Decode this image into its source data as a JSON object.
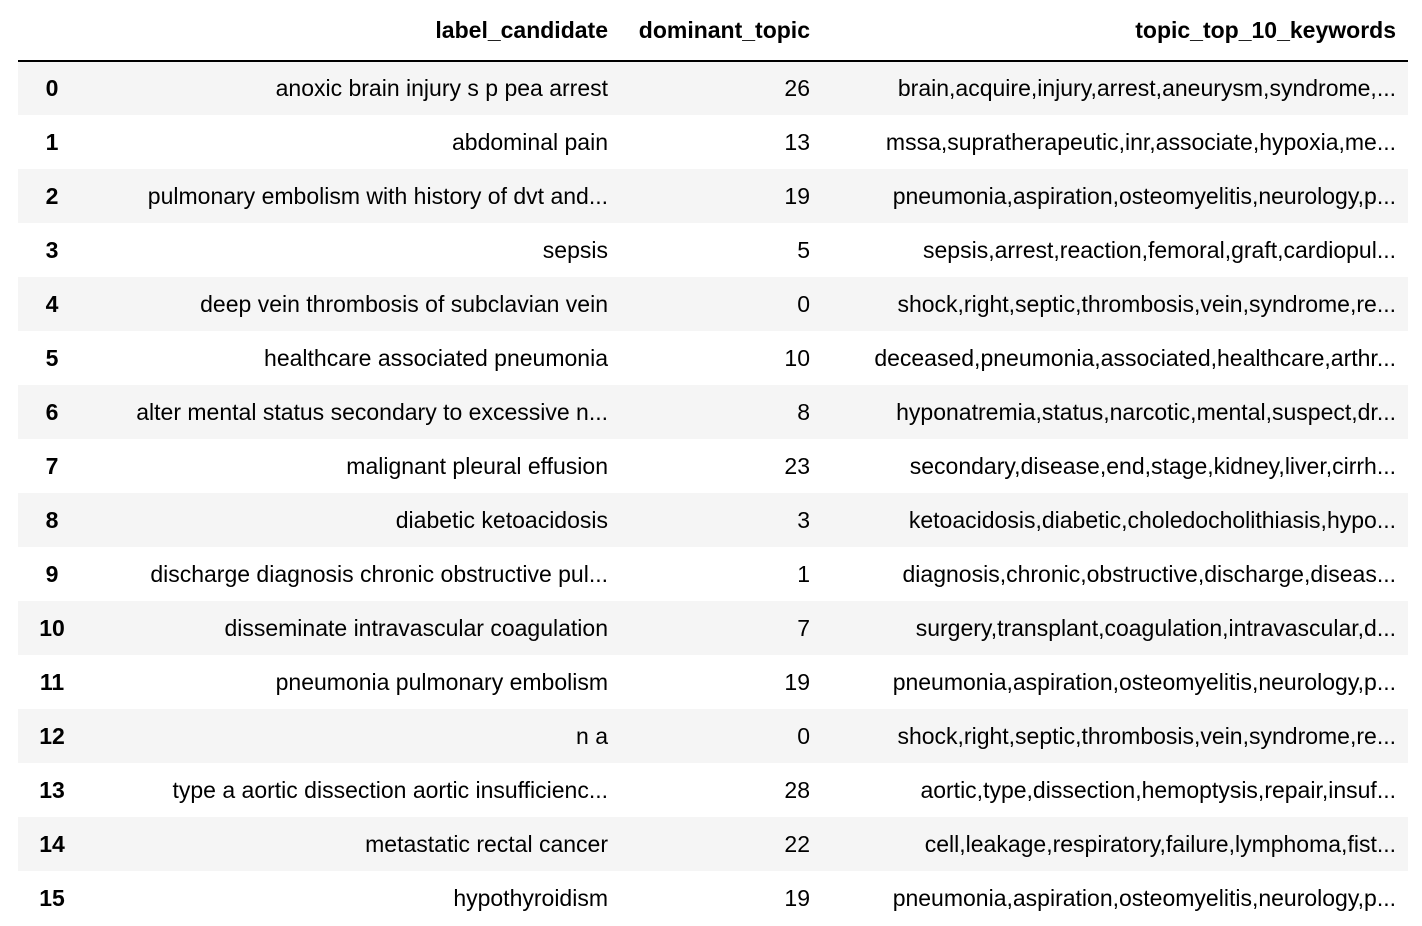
{
  "table": {
    "index_header": "",
    "columns": [
      "label_candidate",
      "dominant_topic",
      "topic_top_10_keywords"
    ],
    "rows": [
      {
        "index": "0",
        "label_candidate": "anoxic brain injury s p pea arrest",
        "dominant_topic": "26",
        "keywords": "brain,acquire,injury,arrest,aneurysm,syndrome,..."
      },
      {
        "index": "1",
        "label_candidate": "abdominal pain",
        "dominant_topic": "13",
        "keywords": "mssa,supratherapeutic,inr,associate,hypoxia,me..."
      },
      {
        "index": "2",
        "label_candidate": "pulmonary embolism with history of dvt and...",
        "dominant_topic": "19",
        "keywords": "pneumonia,aspiration,osteomyelitis,neurology,p..."
      },
      {
        "index": "3",
        "label_candidate": "sepsis",
        "dominant_topic": "5",
        "keywords": "sepsis,arrest,reaction,femoral,graft,cardiopul..."
      },
      {
        "index": "4",
        "label_candidate": "deep vein thrombosis of subclavian vein",
        "dominant_topic": "0",
        "keywords": "shock,right,septic,thrombosis,vein,syndrome,re..."
      },
      {
        "index": "5",
        "label_candidate": "healthcare associated pneumonia",
        "dominant_topic": "10",
        "keywords": "deceased,pneumonia,associated,healthcare,arthr..."
      },
      {
        "index": "6",
        "label_candidate": "alter mental status secondary to excessive n...",
        "dominant_topic": "8",
        "keywords": "hyponatremia,status,narcotic,mental,suspect,dr..."
      },
      {
        "index": "7",
        "label_candidate": "malignant pleural effusion",
        "dominant_topic": "23",
        "keywords": "secondary,disease,end,stage,kidney,liver,cirrh..."
      },
      {
        "index": "8",
        "label_candidate": "diabetic ketoacidosis",
        "dominant_topic": "3",
        "keywords": "ketoacidosis,diabetic,choledocholithiasis,hypo..."
      },
      {
        "index": "9",
        "label_candidate": "discharge diagnosis chronic obstructive pul...",
        "dominant_topic": "1",
        "keywords": "diagnosis,chronic,obstructive,discharge,diseas..."
      },
      {
        "index": "10",
        "label_candidate": "disseminate intravascular coagulation",
        "dominant_topic": "7",
        "keywords": "surgery,transplant,coagulation,intravascular,d..."
      },
      {
        "index": "11",
        "label_candidate": "pneumonia pulmonary embolism",
        "dominant_topic": "19",
        "keywords": "pneumonia,aspiration,osteomyelitis,neurology,p..."
      },
      {
        "index": "12",
        "label_candidate": "n a",
        "dominant_topic": "0",
        "keywords": "shock,right,septic,thrombosis,vein,syndrome,re..."
      },
      {
        "index": "13",
        "label_candidate": "type a aortic dissection aortic insufficienc...",
        "dominant_topic": "28",
        "keywords": "aortic,type,dissection,hemoptysis,repair,insuf..."
      },
      {
        "index": "14",
        "label_candidate": "metastatic rectal cancer",
        "dominant_topic": "22",
        "keywords": "cell,leakage,respiratory,failure,lymphoma,fist..."
      },
      {
        "index": "15",
        "label_candidate": "hypothyroidism",
        "dominant_topic": "19",
        "keywords": "pneumonia,aspiration,osteomyelitis,neurology,p..."
      }
    ]
  }
}
